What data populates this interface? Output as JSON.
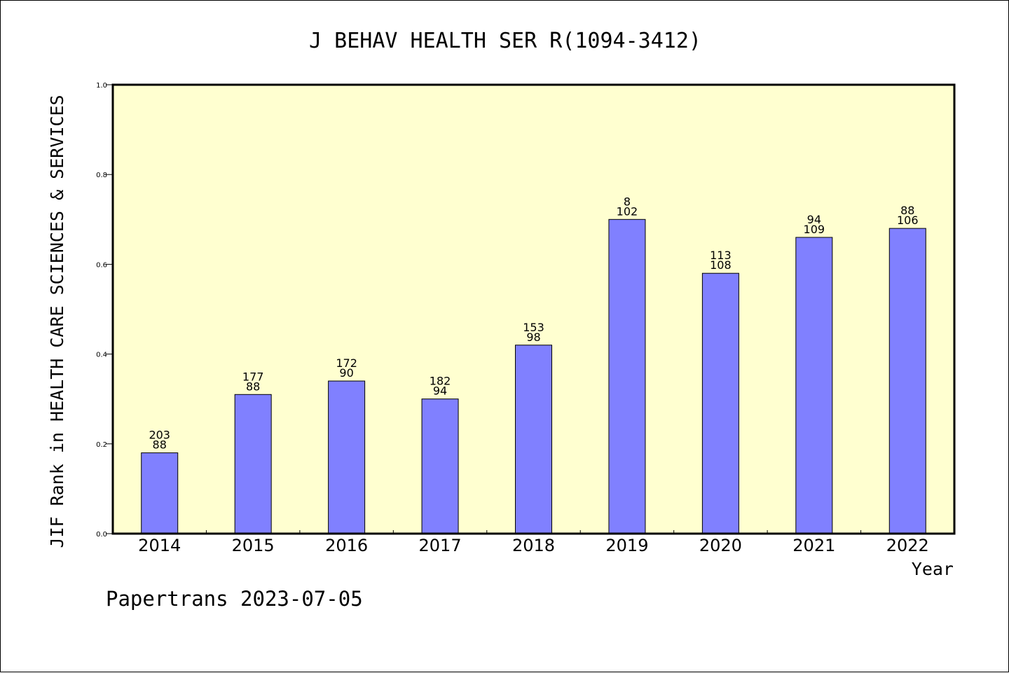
{
  "footer": "Papertrans 2023-07-05",
  "colors": {
    "plot_background": "#ffffd0",
    "bar_fill": "#8080ff",
    "bar_stroke": "#000000"
  },
  "chart_data": {
    "type": "bar",
    "title": "J BEHAV HEALTH SER R(1094-3412)",
    "xlabel": "Year",
    "ylabel": "JIF Rank in HEALTH CARE SCIENCES & SERVICES",
    "ylim": [
      0,
      1.0
    ],
    "yticks": [
      "0.0",
      "0.2",
      "0.4",
      "0.6",
      "0.8",
      "1.0"
    ],
    "grid": false,
    "categories": [
      "2014",
      "2015",
      "2016",
      "2017",
      "2018",
      "2019",
      "2020",
      "2021",
      "2022"
    ],
    "values": [
      0.18,
      0.31,
      0.34,
      0.3,
      0.42,
      0.7,
      0.58,
      0.66,
      0.68
    ],
    "label_top": [
      "203",
      "177",
      "172",
      "182",
      "153",
      "8",
      "113",
      "94",
      "88"
    ],
    "label_bottom": [
      "88",
      "88",
      "90",
      "94",
      "98",
      "102",
      "108",
      "109",
      "106"
    ]
  }
}
